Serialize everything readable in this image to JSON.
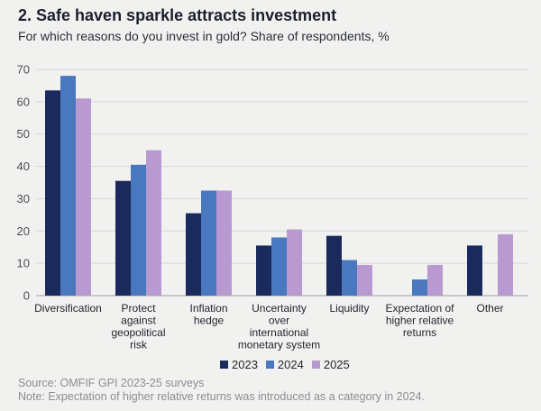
{
  "header": {
    "title": "2. Safe haven sparkle attracts investment",
    "subtitle": "For which reasons do you invest in gold? Share of respondents, %"
  },
  "footer": {
    "source": "Source: OMFIF GPI 2023-25 surveys",
    "note": "Note: Expectation of higher relative returns was introduced as a category in 2024."
  },
  "chart_data": {
    "type": "bar",
    "title": "2. Safe haven sparkle attracts investment",
    "subtitle": "For which reasons do you invest in gold? Share of respondents, %",
    "xlabel": "",
    "ylabel": "",
    "ylim": [
      0,
      70
    ],
    "yticks": [
      0,
      10,
      20,
      30,
      40,
      50,
      60,
      70
    ],
    "grid": true,
    "legend_position": "bottom",
    "categories": [
      [
        "Diversification"
      ],
      [
        "Protect",
        "against",
        "geopolitical",
        "risk"
      ],
      [
        "Inflation",
        "hedge"
      ],
      [
        "Uncertainty",
        "over",
        "international",
        "monetary system"
      ],
      [
        "Liquidity"
      ],
      [
        "Expectation of",
        "higher relative",
        "returns"
      ],
      [
        "Other"
      ]
    ],
    "series": [
      {
        "name": "2023",
        "color": "#1b2a5c",
        "values": [
          63.5,
          35.5,
          25.5,
          15.5,
          18.5,
          null,
          15.5
        ]
      },
      {
        "name": "2024",
        "color": "#4a78be",
        "values": [
          68,
          40.5,
          32.5,
          18,
          11,
          5,
          null
        ]
      },
      {
        "name": "2025",
        "color": "#b99ad0",
        "values": [
          61,
          45,
          32.5,
          20.5,
          9.5,
          9.5,
          19
        ]
      }
    ]
  }
}
